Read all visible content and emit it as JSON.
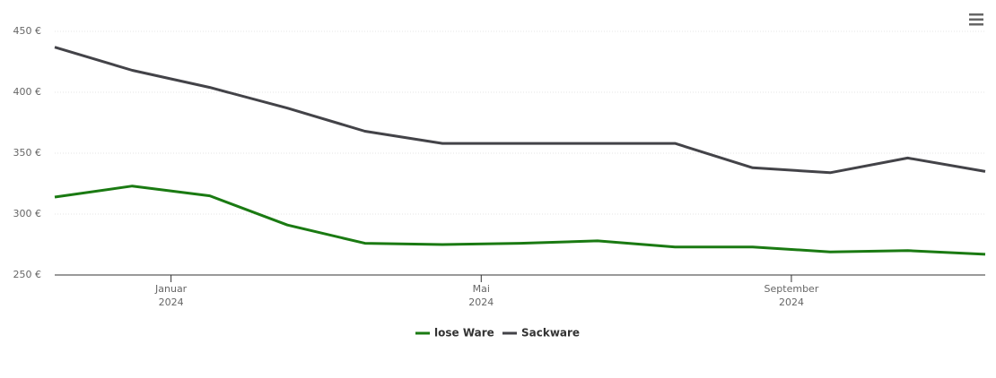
{
  "chart_data": {
    "type": "line",
    "x": [
      "2023-11",
      "2023-12",
      "2024-01",
      "2024-02",
      "2024-03",
      "2024-04",
      "2024-05",
      "2024-06",
      "2024-07",
      "2024-08",
      "2024-09",
      "2024-10",
      "2024-11"
    ],
    "series": [
      {
        "name": "lose Ware",
        "color": "#1a7a12",
        "values": [
          314,
          323,
          315,
          291,
          276,
          275,
          276,
          278,
          273,
          273,
          269,
          270,
          267
        ]
      },
      {
        "name": "Sackware",
        "color": "#434348",
        "values": [
          437,
          418,
          404,
          387,
          368,
          358,
          358,
          358,
          358,
          338,
          334,
          346,
          335
        ]
      }
    ],
    "xlim": [
      "2023-11",
      "2024-11"
    ],
    "xticks": [
      {
        "value": "2024-01",
        "label": "Januar",
        "year": "2024"
      },
      {
        "value": "2024-05",
        "label": "Mai",
        "year": "2024"
      },
      {
        "value": "2024-09",
        "label": "September",
        "year": "2024"
      }
    ],
    "ylim": [
      250,
      450
    ],
    "yticks": [
      {
        "value": 250,
        "label": "250 €"
      },
      {
        "value": 300,
        "label": "300 €"
      },
      {
        "value": 350,
        "label": "350 €"
      },
      {
        "value": 400,
        "label": "400 €"
      },
      {
        "value": 450,
        "label": "450 €"
      }
    ],
    "grid": true,
    "legend": "bottom"
  }
}
